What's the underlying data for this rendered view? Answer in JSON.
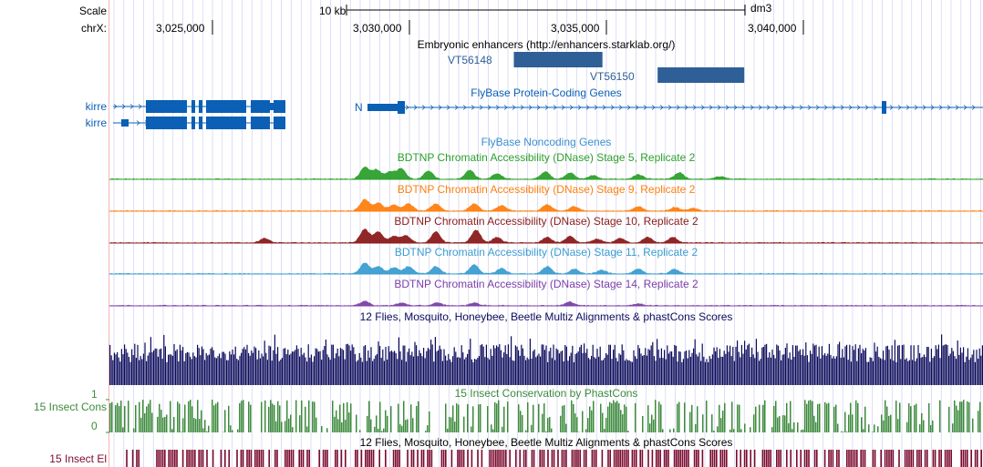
{
  "scale": {
    "label": "Scale",
    "bar_label": "10 kb",
    "assembly": "dm3"
  },
  "ruler": {
    "chrom_label": "chrX:",
    "ticks": [
      {
        "label": "3,025,000",
        "pos": 3025000
      },
      {
        "label": "3,030,000",
        "pos": 3030000
      },
      {
        "label": "3,035,000",
        "pos": 3035000
      },
      {
        "label": "3,040,000",
        "pos": 3040000
      }
    ]
  },
  "enhancers": {
    "title": "Embryonic enhancers (http://enhancers.starklab.org/)",
    "items": [
      {
        "name": "VT56148",
        "start": 3032650,
        "end": 3034900
      },
      {
        "name": "VT56150",
        "start": 3036300,
        "end": 3038500
      }
    ]
  },
  "genes": {
    "title": "FlyBase Protein-Coding Genes",
    "left_labels": [
      "kirre",
      "kirre"
    ],
    "n_label": "N",
    "noncoding_title": "FlyBase Noncoding Genes"
  },
  "dnase_tracks": [
    {
      "title": "BDTNP Chromatin Accessibility (DNase) Stage 5, Replicate 2",
      "color": "#2ca02c"
    },
    {
      "title": "BDTNP Chromatin Accessibility (DNase) Stage 9, Replicate 2",
      "color": "#ff7f0e"
    },
    {
      "title": "BDTNP Chromatin Accessibility (DNase) Stage 10, Replicate 2",
      "color": "#8b1a1a"
    },
    {
      "title": "BDTNP Chromatin Accessibility (DNase) Stage 11, Replicate 2",
      "color": "#3b9dd0"
    },
    {
      "title": "BDTNP Chromatin Accessibility (DNase) Stage 14, Replicate 2",
      "color": "#7b3fa8"
    }
  ],
  "multiz": {
    "title": "12 Flies, Mosquito, Honeybee, Beetle Multiz Alignments & phastCons Scores",
    "color": "#0b0b5c"
  },
  "phastcons": {
    "title": "15 Insect Conservation by PhastCons",
    "left_label": "15 Insect Cons",
    "axis_max": "1",
    "axis_min": "0",
    "color": "#3d8b3d"
  },
  "elements": {
    "title": "12 Flies, Mosquito, Honeybee, Beetle Multiz Alignments & phastCons Scores",
    "left_label": "15 Insect El",
    "color": "#7a0a2e"
  },
  "colors": {
    "gene": "#0b5fb5",
    "enhancer": "#2e5f96",
    "grid": "#c9c9f0",
    "separator": "#f4b6b6"
  }
}
